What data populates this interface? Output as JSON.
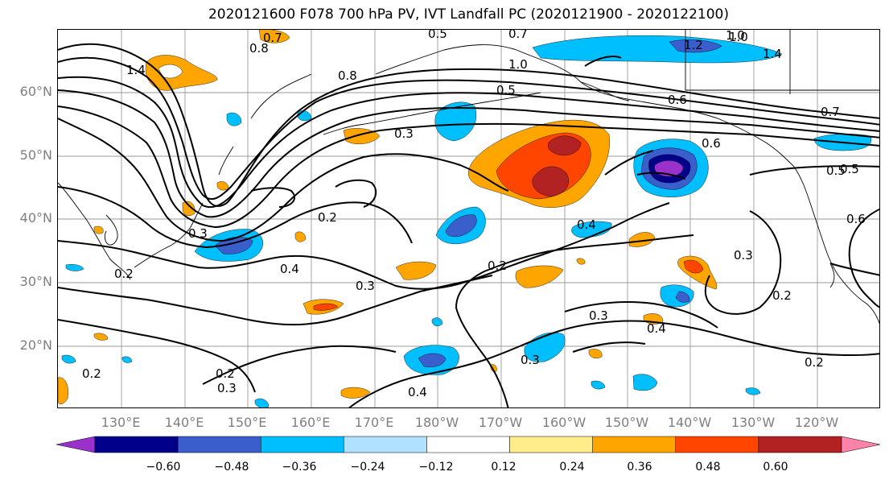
{
  "title": "2020121600 F078 700 hPa PV, IVT Landfall PC (2020121900 - 2020122100)",
  "lat_labels": [
    "60°N",
    "50°N",
    "40°N",
    "30°N",
    "20°N"
  ],
  "lon_labels": [
    "130°E",
    "140°E",
    "150°E",
    "160°E",
    "170°E",
    "180°W",
    "170°W",
    "160°W",
    "150°W",
    "140°W",
    "130°W",
    "120°W"
  ],
  "colorbar": {
    "ticks": [
      "−0.60",
      "−0.48",
      "−0.36",
      "−0.24",
      "−0.12",
      "0.12",
      "0.24",
      "0.36",
      "0.48",
      "0.60"
    ],
    "colors": [
      "#9a31cd",
      "#00008b",
      "#3a5fcd",
      "#00bfff",
      "#b0e2ff",
      "#ffffff",
      "#ffec8b",
      "#ffa500",
      "#ff4500",
      "#b22222",
      "#ff82ab"
    ]
  },
  "contour_labels": [
    "0.7",
    "0.8",
    "1.4",
    "0.5",
    "0.8",
    "1.0",
    "0.5",
    "0.7",
    "1.0",
    "1.2",
    "1.0",
    "1.4",
    "0.6",
    "0.7",
    "0.3",
    "0.6",
    "0.5",
    "0.6",
    "0.2",
    "0.3",
    "0.4",
    "0.3",
    "0.2",
    "0.4",
    "0.2",
    "0.3",
    "0.3",
    "0.4",
    "0.2",
    "0.2",
    "0.3",
    "0.2",
    "0.3",
    "0.4",
    "0.2",
    "0.5"
  ]
}
